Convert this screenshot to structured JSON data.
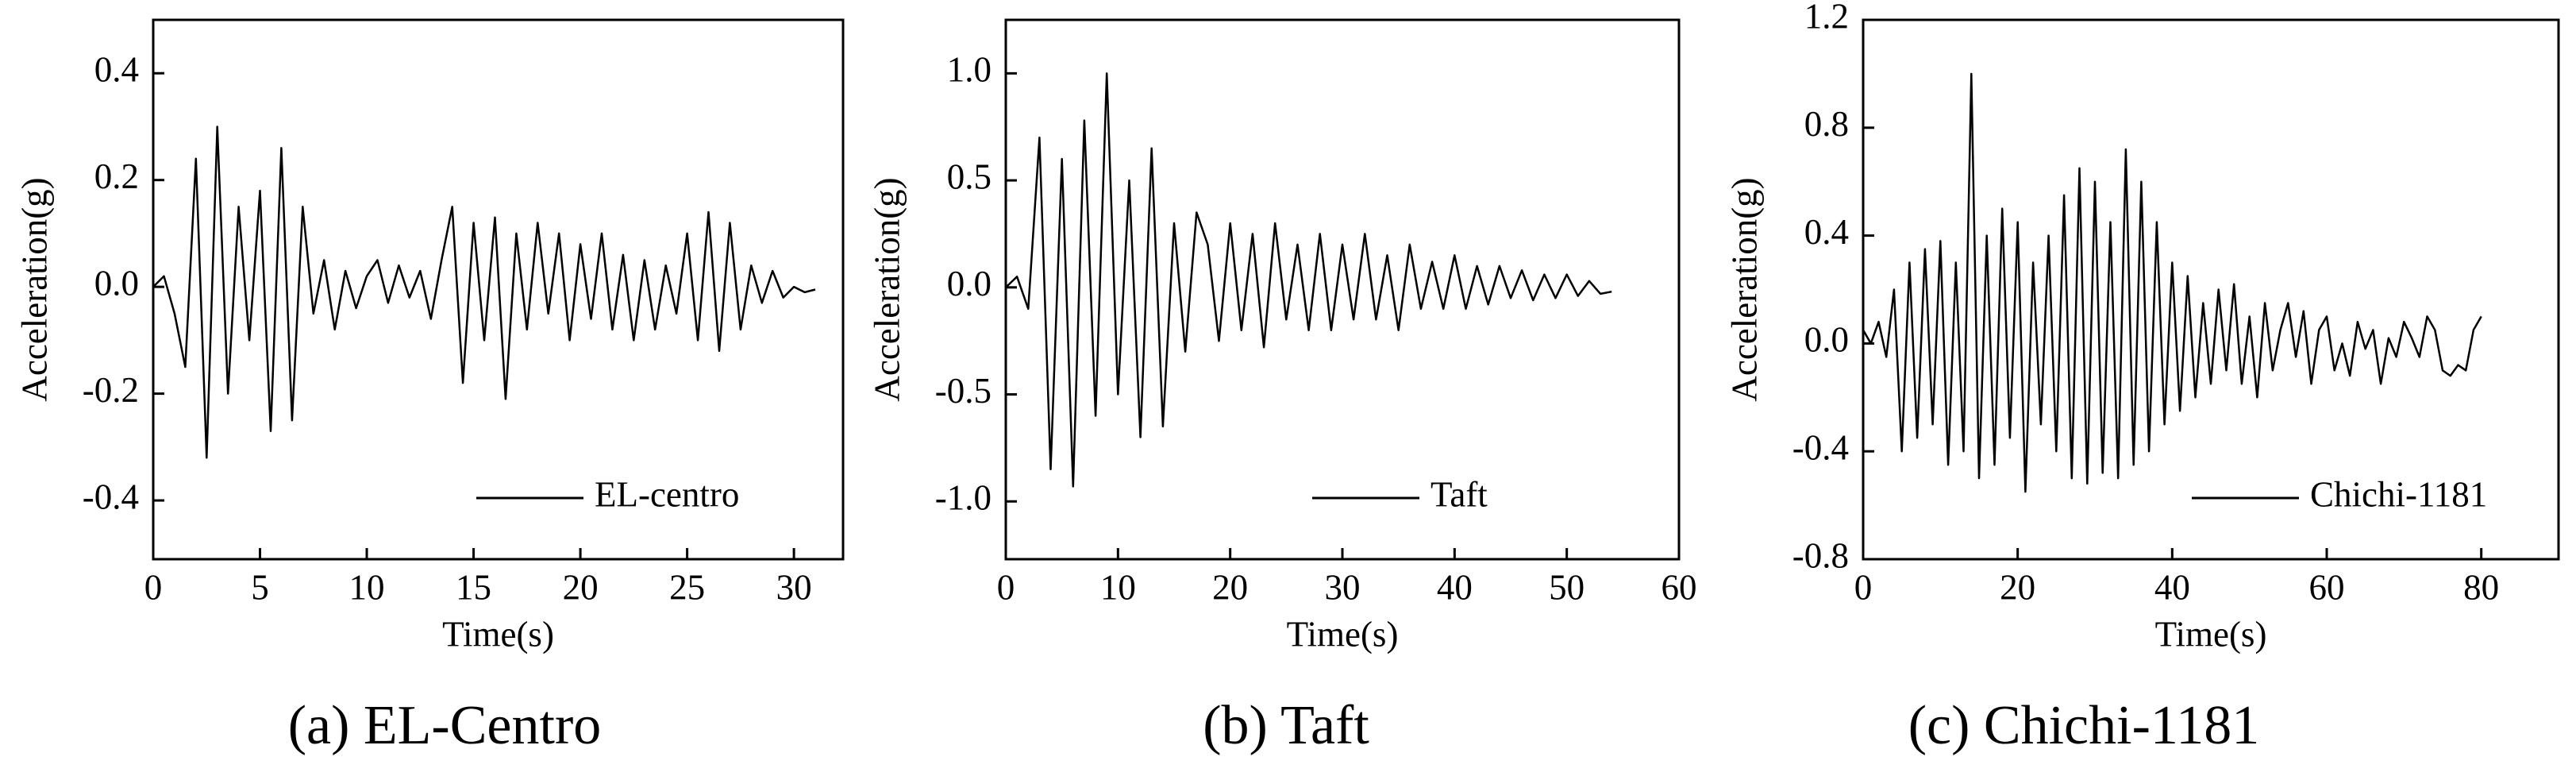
{
  "chart_data": [
    {
      "type": "line",
      "caption": "(a) EL-Centro",
      "xlabel": "Time(s)",
      "ylabel": "Acceleration(g)",
      "legend": "lower right",
      "x": [
        0,
        0.5,
        1,
        1.5,
        2,
        2.5,
        3,
        3.5,
        4,
        4.5,
        5,
        5.5,
        6,
        6.5,
        7,
        7.5,
        8,
        8.5,
        9,
        9.5,
        10,
        10.5,
        11,
        11.5,
        12,
        12.5,
        13,
        13.5,
        14,
        14.5,
        15,
        15.5,
        16,
        16.5,
        17,
        17.5,
        18,
        18.5,
        19,
        19.5,
        20,
        20.5,
        21,
        21.5,
        22,
        22.5,
        23,
        23.5,
        24,
        24.5,
        25,
        25.5,
        26,
        26.5,
        27,
        27.5,
        28,
        28.5,
        29,
        29.5,
        30,
        30.5,
        31
      ],
      "series": [
        {
          "name": "EL-centro",
          "color": "#000000",
          "values": [
            0,
            0.02,
            -0.05,
            -0.15,
            0.24,
            -0.32,
            0.3,
            -0.2,
            0.15,
            -0.1,
            0.18,
            -0.27,
            0.26,
            -0.25,
            0.15,
            -0.05,
            0.05,
            -0.08,
            0.03,
            -0.04,
            0.02,
            0.05,
            -0.03,
            0.04,
            -0.02,
            0.03,
            -0.06,
            0.05,
            0.15,
            -0.18,
            0.12,
            -0.1,
            0.13,
            -0.21,
            0.1,
            -0.08,
            0.12,
            -0.05,
            0.1,
            -0.1,
            0.08,
            -0.06,
            0.1,
            -0.08,
            0.06,
            -0.1,
            0.05,
            -0.08,
            0.04,
            -0.05,
            0.1,
            -0.1,
            0.14,
            -0.12,
            0.12,
            -0.08,
            0.04,
            -0.03,
            0.03,
            -0.02,
            0,
            -0.01,
            -0.005
          ]
        }
      ],
      "xlim": [
        0,
        32.3
      ],
      "ylim": [
        -0.51,
        0.5
      ],
      "xticks": [
        0,
        5,
        10,
        15,
        20,
        25,
        30
      ],
      "yticks": [
        -0.4,
        -0.2,
        {
          "value": 0,
          "label": "0.0"
        },
        0.2,
        0.4
      ]
    },
    {
      "type": "line",
      "caption": "(b) Taft",
      "xlabel": "Time(s)",
      "ylabel": "Acceleration(g)",
      "legend": "lower right",
      "x": [
        0,
        1,
        2,
        3,
        4,
        5,
        6,
        7,
        8,
        9,
        10,
        11,
        12,
        13,
        14,
        15,
        16,
        17,
        18,
        19,
        20,
        21,
        22,
        23,
        24,
        25,
        26,
        27,
        28,
        29,
        30,
        31,
        32,
        33,
        34,
        35,
        36,
        37,
        38,
        39,
        40,
        41,
        42,
        43,
        44,
        45,
        46,
        47,
        48,
        49,
        50,
        51,
        52,
        53,
        54
      ],
      "series": [
        {
          "name": "Taft",
          "color": "#000000",
          "values": [
            0,
            0.05,
            -0.1,
            0.7,
            -0.85,
            0.6,
            -0.93,
            0.78,
            -0.6,
            1.0,
            -0.5,
            0.5,
            -0.7,
            0.65,
            -0.65,
            0.3,
            -0.3,
            0.35,
            0.2,
            -0.25,
            0.3,
            -0.2,
            0.25,
            -0.28,
            0.3,
            -0.15,
            0.2,
            -0.2,
            0.25,
            -0.2,
            0.2,
            -0.15,
            0.25,
            -0.15,
            0.15,
            -0.2,
            0.2,
            -0.1,
            0.12,
            -0.1,
            0.15,
            -0.1,
            0.1,
            -0.08,
            0.1,
            -0.05,
            0.08,
            -0.06,
            0.06,
            -0.05,
            0.06,
            -0.04,
            0.03,
            -0.03,
            -0.02
          ]
        }
      ],
      "xlim": [
        0,
        60
      ],
      "ylim": [
        -1.27,
        1.25
      ],
      "xticks": [
        0,
        10,
        20,
        30,
        40,
        50,
        60
      ],
      "yticks": [
        {
          "value": -1,
          "label": "-1.0"
        },
        -0.5,
        {
          "value": 0,
          "label": "0.0"
        },
        0.5,
        {
          "value": 1,
          "label": "1.0"
        }
      ]
    },
    {
      "type": "line",
      "caption": "(c) Chichi-1181",
      "xlabel": "Time(s)",
      "ylabel": "Acceleration(g)",
      "legend": "lower right",
      "x": [
        0,
        1,
        2,
        3,
        4,
        5,
        6,
        7,
        8,
        9,
        10,
        11,
        12,
        13,
        14,
        15,
        16,
        17,
        18,
        19,
        20,
        21,
        22,
        23,
        24,
        25,
        26,
        27,
        28,
        29,
        30,
        31,
        32,
        33,
        34,
        35,
        36,
        37,
        38,
        39,
        40,
        41,
        42,
        43,
        44,
        45,
        46,
        47,
        48,
        49,
        50,
        51,
        52,
        53,
        54,
        55,
        56,
        57,
        58,
        59,
        60,
        61,
        62,
        63,
        64,
        65,
        66,
        67,
        68,
        69,
        70,
        71,
        72,
        73,
        74,
        75,
        76,
        77,
        78,
        79,
        80
      ],
      "series": [
        {
          "name": "Chichi-1181",
          "color": "#000000",
          "values": [
            0.05,
            0,
            0.08,
            -0.05,
            0.2,
            -0.4,
            0.3,
            -0.35,
            0.35,
            -0.3,
            0.38,
            -0.45,
            0.3,
            -0.4,
            1.0,
            -0.5,
            0.4,
            -0.45,
            0.5,
            -0.35,
            0.45,
            -0.55,
            0.3,
            -0.3,
            0.4,
            -0.4,
            0.55,
            -0.5,
            0.65,
            -0.52,
            0.6,
            -0.48,
            0.45,
            -0.5,
            0.72,
            -0.45,
            0.6,
            -0.4,
            0.45,
            -0.3,
            0.3,
            -0.25,
            0.25,
            -0.2,
            0.15,
            -0.15,
            0.2,
            -0.1,
            0.22,
            -0.15,
            0.1,
            -0.2,
            0.15,
            -0.1,
            0.05,
            0.15,
            -0.05,
            0.12,
            -0.15,
            0.05,
            0.1,
            -0.1,
            0,
            -0.12,
            0.08,
            -0.02,
            0.05,
            -0.15,
            0.02,
            -0.05,
            0.08,
            0.02,
            -0.05,
            0.1,
            0.05,
            -0.1,
            -0.12,
            -0.08,
            -0.1,
            0.05,
            0.1
          ]
        }
      ],
      "xlim": [
        0,
        90
      ],
      "ylim": [
        -0.8,
        1.2
      ],
      "xticks": [
        0,
        20,
        40,
        60,
        80
      ],
      "yticks": [
        -0.8,
        -0.4,
        {
          "value": 0,
          "label": "0.0"
        },
        0.4,
        0.8,
        1.2
      ]
    }
  ]
}
